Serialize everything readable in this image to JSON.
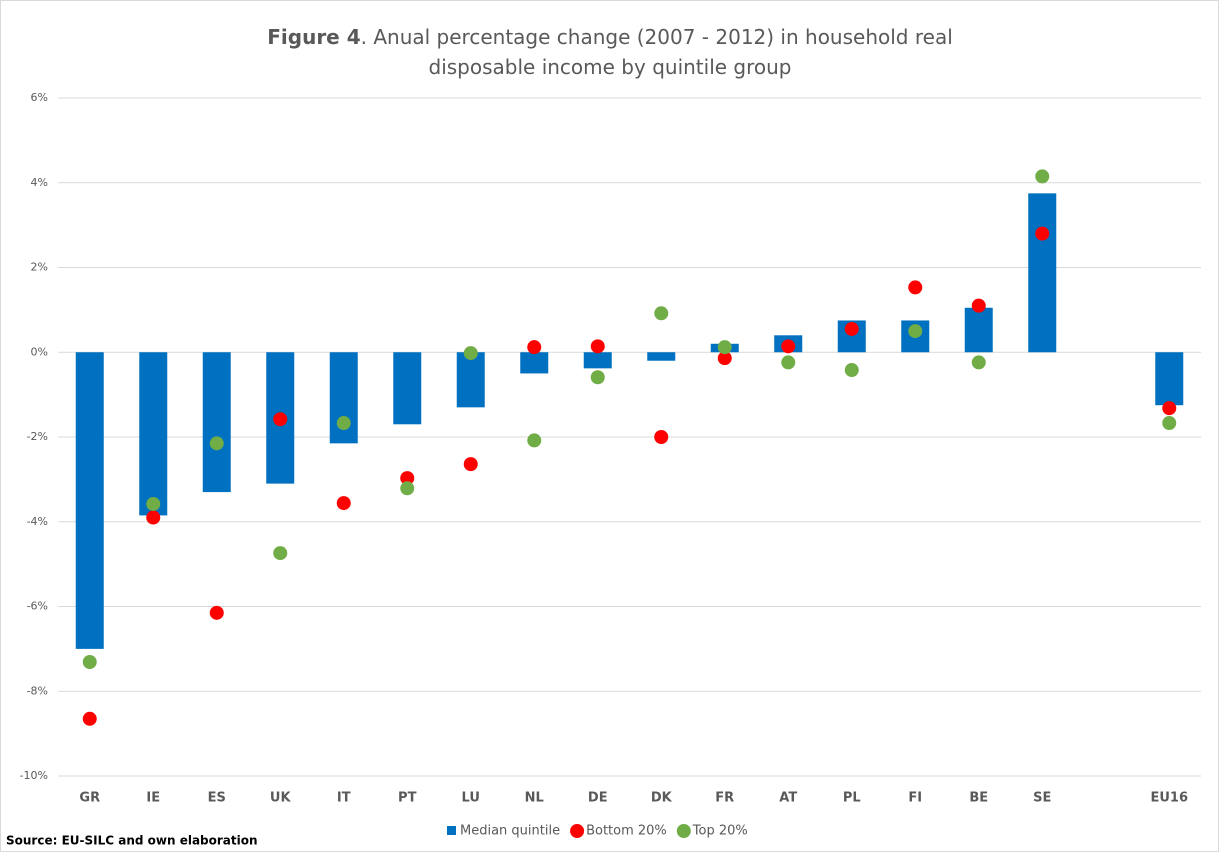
{
  "chart_data": {
    "type": "bar",
    "title_label": "Figure 4",
    "title": ". Anual percentage change (2007 - 2012) in household real disposable income by quintile group",
    "source": "Source: EU-SILC and own elaboration",
    "categories": [
      "GR",
      "IE",
      "ES",
      "UK",
      "IT",
      "PT",
      "LU",
      "NL",
      "DE",
      "DK",
      "FR",
      "AT",
      "PL",
      "FI",
      "BE",
      "SE",
      null,
      "EU16"
    ],
    "series": [
      {
        "name": "Median quintile",
        "type": "bar",
        "color": "#0070c0",
        "values": [
          -7.0,
          -3.85,
          -3.3,
          -3.1,
          -2.15,
          -1.7,
          -1.3,
          -0.5,
          -0.38,
          -0.2,
          0.2,
          0.4,
          0.75,
          0.75,
          1.05,
          3.75,
          null,
          -1.25
        ]
      },
      {
        "name": "Bottom 20%",
        "type": "scatter",
        "color": "#ff0000",
        "values": [
          -8.65,
          -3.9,
          -6.15,
          -1.58,
          -3.56,
          -2.97,
          -2.64,
          0.12,
          0.14,
          -2.0,
          -0.14,
          0.14,
          0.55,
          1.53,
          1.1,
          2.8,
          null,
          -1.32
        ]
      },
      {
        "name": "Top 20%",
        "type": "scatter",
        "color": "#70ad47",
        "values": [
          -7.31,
          -3.58,
          -2.15,
          -4.74,
          -1.67,
          -3.21,
          -0.02,
          -2.08,
          -0.59,
          0.92,
          0.12,
          -0.24,
          -0.42,
          0.5,
          -0.24,
          4.15,
          null,
          -1.67
        ]
      }
    ],
    "ylim": [
      -10,
      6
    ],
    "yticks": [
      {
        "value": -10,
        "label": "-10%"
      },
      {
        "value": -8,
        "label": "-8%"
      },
      {
        "value": -6,
        "label": "-6%"
      },
      {
        "value": -4,
        "label": "-4%"
      },
      {
        "value": -2,
        "label": "-2%"
      },
      {
        "value": 0,
        "label": "0%"
      },
      {
        "value": 2,
        "label": "2%"
      },
      {
        "value": 4,
        "label": "4%"
      },
      {
        "value": 6,
        "label": "6%"
      }
    ],
    "grid": true,
    "legend": "bottom"
  }
}
